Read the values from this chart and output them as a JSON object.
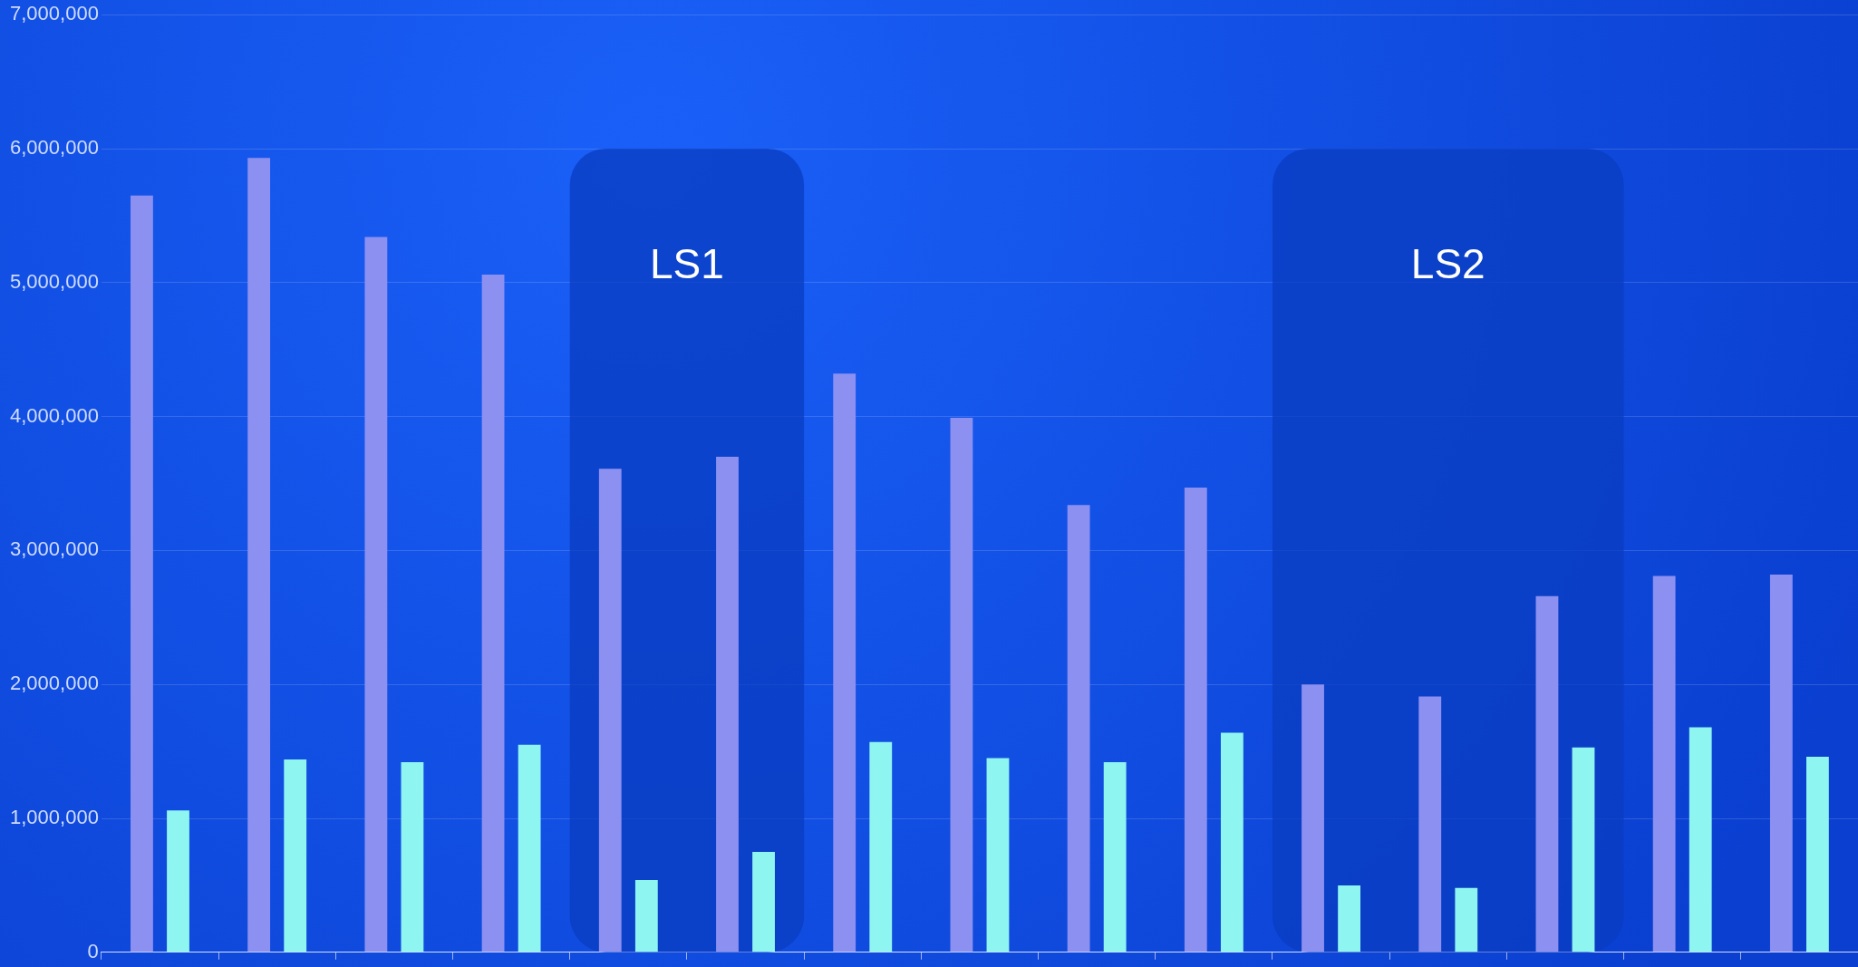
{
  "chart_data": {
    "type": "bar",
    "categories": [
      null,
      null,
      null,
      null,
      null,
      null,
      null,
      null,
      null,
      null,
      null,
      null,
      null,
      null,
      null
    ],
    "series": [
      {
        "color": "#8c90f0",
        "values": [
          5650000,
          5930000,
          5340000,
          5060000,
          3610000,
          3700000,
          4320000,
          3990000,
          3340000,
          3470000,
          2000000,
          1910000,
          2660000,
          2810000,
          2820000
        ]
      },
      {
        "color": "#8ff5f0",
        "values": [
          1060000,
          1440000,
          1420000,
          1550000,
          540000,
          750000,
          1570000,
          1450000,
          1420000,
          1640000,
          500000,
          480000,
          1530000,
          1680000,
          1460000
        ]
      }
    ],
    "ylim": [
      0,
      7000000
    ],
    "yticks": [
      0,
      {
        "value": 1000000,
        "label": "1,000,000"
      },
      {
        "value": 2000000,
        "label": "2,000,000"
      },
      {
        "value": 3000000,
        "label": "3,000,000"
      },
      {
        "value": 4000000,
        "label": "4,000,000"
      },
      {
        "value": 5000000,
        "label": "5,000,000"
      },
      {
        "value": 6000000,
        "label": "6,000,000"
      },
      {
        "value": 7000000,
        "label": "7,000,000"
      }
    ],
    "annotations": [
      "LS1",
      "LS2"
    ],
    "grid": "y",
    "tick_labels": "y"
  }
}
